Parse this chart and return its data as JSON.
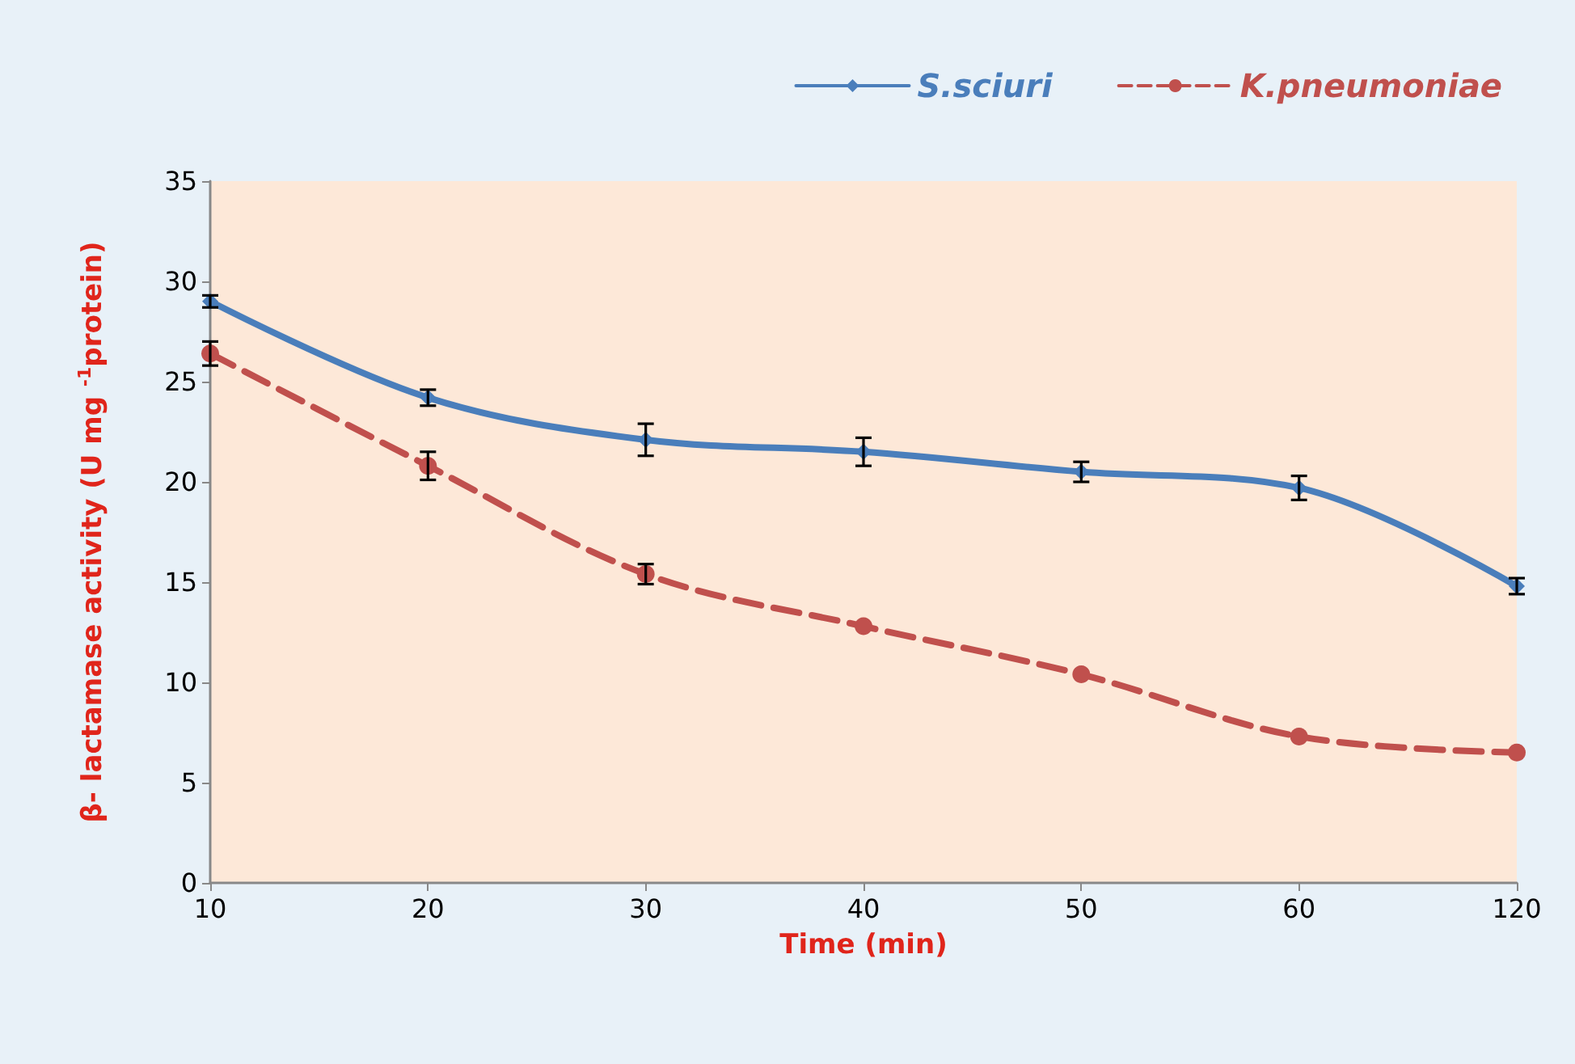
{
  "chart_data": {
    "type": "line",
    "xlabel": "Time (min)",
    "ylabel": "β- lactamase activity (U mg $^{-1}$protein)",
    "categories": [
      "10",
      "20",
      "30",
      "40",
      "50",
      "60",
      "120"
    ],
    "series": [
      {
        "name": "S.sciuri",
        "color": "#4a7ebb",
        "marker": "diamond",
        "line_style": "solid",
        "values": [
          29.0,
          24.2,
          22.1,
          21.5,
          20.5,
          19.7,
          14.8
        ],
        "errors": [
          0.3,
          0.4,
          0.8,
          0.7,
          0.5,
          0.6,
          0.4
        ]
      },
      {
        "name": "K.pneumoniae",
        "color": "#c0504d",
        "marker": "circle",
        "line_style": "dashed",
        "values": [
          26.4,
          20.8,
          15.4,
          12.8,
          10.4,
          7.3,
          6.5
        ],
        "errors": [
          0.6,
          0.7,
          0.5,
          null,
          null,
          null,
          null
        ]
      }
    ],
    "ylim": [
      0,
      35
    ],
    "yticks": [
      0,
      5,
      10,
      15,
      20,
      25,
      30,
      35
    ],
    "grid": false,
    "legend": "top right"
  }
}
